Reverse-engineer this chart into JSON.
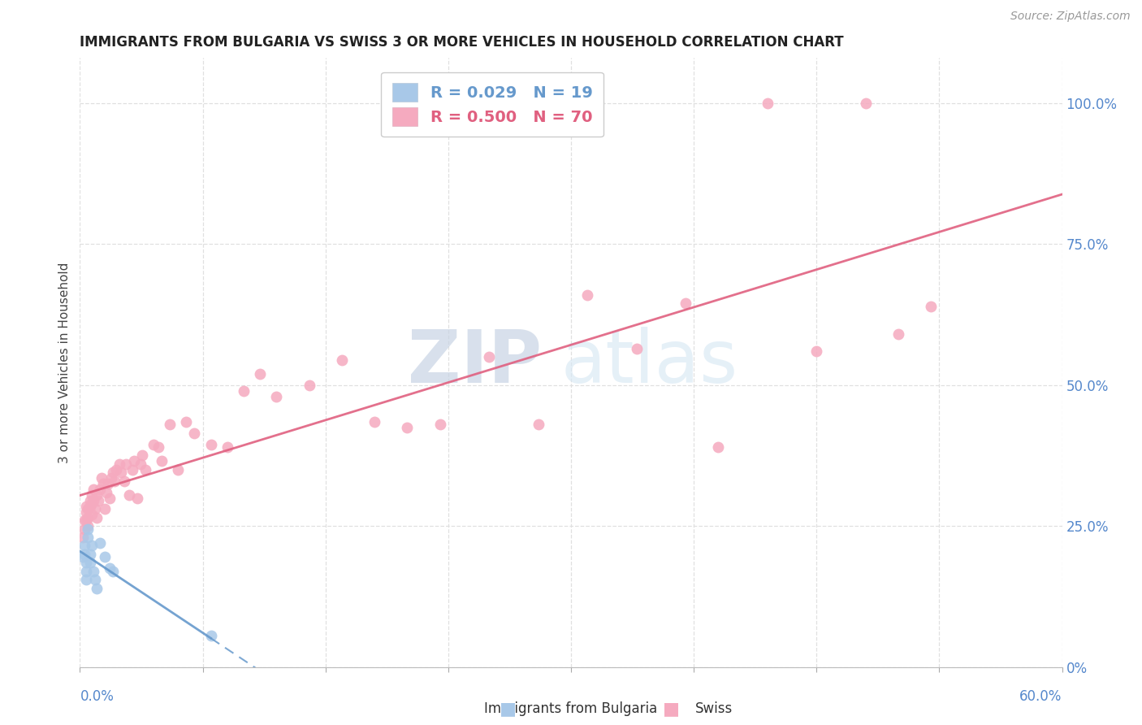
{
  "title": "IMMIGRANTS FROM BULGARIA VS SWISS 3 OR MORE VEHICLES IN HOUSEHOLD CORRELATION CHART",
  "source": "Source: ZipAtlas.com",
  "ylabel": "3 or more Vehicles in Household",
  "right_ytick_vals": [
    0.0,
    0.25,
    0.5,
    0.75,
    1.0
  ],
  "right_ytick_labels": [
    "0%",
    "25.0%",
    "50.0%",
    "75.0%",
    "100.0%"
  ],
  "xlim": [
    0.0,
    0.6
  ],
  "ylim": [
    0.0,
    1.08
  ],
  "legend_label_bulgaria": "R = 0.029   N = 19",
  "legend_label_swiss": "R = 0.500   N = 70",
  "bulgaria_face_color": "#a8c8e8",
  "swiss_face_color": "#f5aabf",
  "bulgaria_line_color": "#6699cc",
  "swiss_line_color": "#e06080",
  "bulgaria_R": 0.029,
  "swiss_R": 0.5,
  "bulgaria_N": 19,
  "swiss_N": 70,
  "bulgaria_x": [
    0.002,
    0.003,
    0.003,
    0.004,
    0.004,
    0.004,
    0.005,
    0.005,
    0.006,
    0.006,
    0.007,
    0.008,
    0.009,
    0.01,
    0.012,
    0.015,
    0.018,
    0.02,
    0.08
  ],
  "bulgaria_y": [
    0.195,
    0.215,
    0.2,
    0.185,
    0.17,
    0.155,
    0.23,
    0.245,
    0.185,
    0.2,
    0.215,
    0.17,
    0.155,
    0.14,
    0.22,
    0.195,
    0.175,
    0.17,
    0.055
  ],
  "swiss_x": [
    0.002,
    0.003,
    0.003,
    0.004,
    0.004,
    0.004,
    0.005,
    0.005,
    0.005,
    0.006,
    0.006,
    0.007,
    0.007,
    0.007,
    0.008,
    0.008,
    0.009,
    0.01,
    0.01,
    0.011,
    0.012,
    0.013,
    0.014,
    0.015,
    0.016,
    0.017,
    0.018,
    0.019,
    0.02,
    0.021,
    0.022,
    0.024,
    0.025,
    0.027,
    0.028,
    0.03,
    0.032,
    0.033,
    0.035,
    0.037,
    0.038,
    0.04,
    0.045,
    0.048,
    0.05,
    0.055,
    0.06,
    0.065,
    0.07,
    0.08,
    0.09,
    0.1,
    0.11,
    0.12,
    0.14,
    0.16,
    0.18,
    0.2,
    0.22,
    0.25,
    0.28,
    0.31,
    0.34,
    0.37,
    0.39,
    0.42,
    0.45,
    0.48,
    0.5,
    0.52
  ],
  "swiss_y": [
    0.23,
    0.26,
    0.245,
    0.275,
    0.285,
    0.26,
    0.265,
    0.28,
    0.25,
    0.285,
    0.295,
    0.29,
    0.27,
    0.305,
    0.295,
    0.315,
    0.28,
    0.265,
    0.305,
    0.295,
    0.315,
    0.335,
    0.325,
    0.28,
    0.31,
    0.325,
    0.3,
    0.335,
    0.345,
    0.33,
    0.35,
    0.36,
    0.345,
    0.33,
    0.36,
    0.305,
    0.35,
    0.365,
    0.3,
    0.36,
    0.375,
    0.35,
    0.395,
    0.39,
    0.365,
    0.43,
    0.35,
    0.435,
    0.415,
    0.395,
    0.39,
    0.49,
    0.52,
    0.48,
    0.5,
    0.545,
    0.435,
    0.425,
    0.43,
    0.55,
    0.43,
    0.66,
    0.565,
    0.645,
    0.39,
    1.0,
    0.56,
    1.0,
    0.59,
    0.64
  ],
  "grid_color": "#e0e0e0",
  "axis_label_color": "#5588cc",
  "title_color": "#222222",
  "ylabel_color": "#444444",
  "bg_color": "#ffffff",
  "marker_size": 100
}
